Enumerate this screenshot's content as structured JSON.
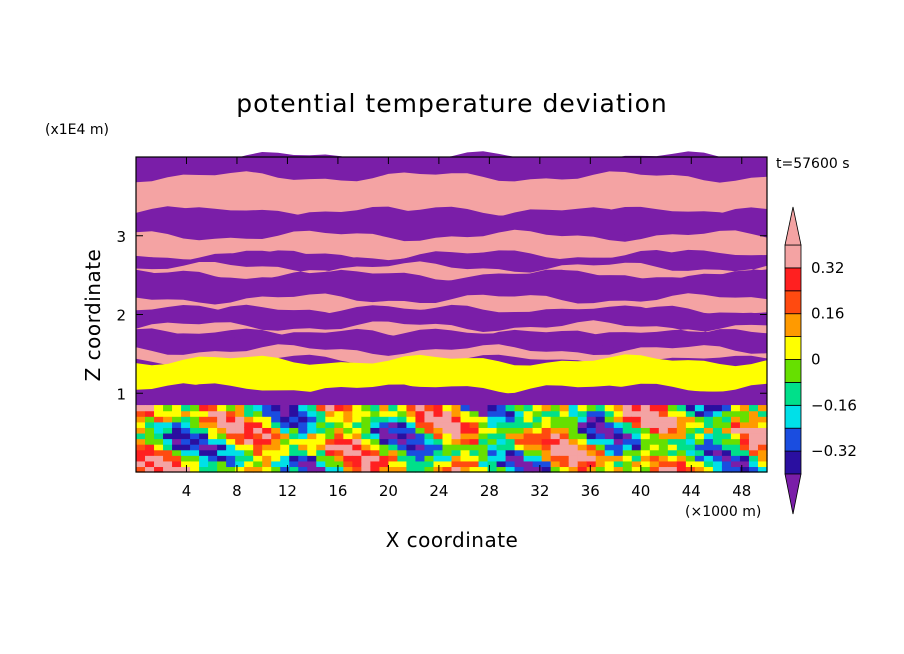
{
  "chart_data": {
    "type": "heatmap",
    "title": "potential temperature deviation",
    "xlabel": "X coordinate",
    "ylabel": "Z coordinate",
    "x_unit": "(×1000 m)",
    "y_unit": "(x1E4 m)",
    "time_label": "t=57600 s",
    "xlim": [
      0,
      50
    ],
    "ylim": [
      0,
      4
    ],
    "x_ticks": [
      4,
      8,
      12,
      16,
      20,
      24,
      28,
      32,
      36,
      40,
      44,
      48
    ],
    "y_ticks": [
      1,
      2,
      3
    ],
    "colorbar": {
      "levels": [
        -0.4,
        -0.32,
        -0.24,
        -0.16,
        -0.08,
        0,
        0.08,
        0.16,
        0.24,
        0.32,
        0.4
      ],
      "tick_labels": [
        {
          "value": 0.32,
          "label": "0.32"
        },
        {
          "value": 0.16,
          "label": "0.16"
        },
        {
          "value": 0,
          "label": "0"
        },
        {
          "value": -0.16,
          "label": "−0.16"
        },
        {
          "value": -0.32,
          "label": "−0.32"
        }
      ],
      "colors": [
        "#7a1ea8",
        "#2a0fa0",
        "#1a4de0",
        "#00e0e8",
        "#00e08a",
        "#66e000",
        "#ffff00",
        "#ff9a00",
        "#ff4a10",
        "#ff2020",
        "#f4a3a3"
      ],
      "extend": "both"
    },
    "layers": [
      {
        "z": [
          3.75,
          4.0
        ],
        "value": -0.4
      },
      {
        "z": [
          3.3,
          3.75
        ],
        "value": 0.4
      },
      {
        "z": [
          3.0,
          3.3
        ],
        "value": -0.4
      },
      {
        "z": [
          2.75,
          3.0
        ],
        "value": 0.4
      },
      {
        "z": [
          2.6,
          2.75
        ],
        "value": -0.4
      },
      {
        "z": [
          2.5,
          2.6
        ],
        "value": 0.4
      },
      {
        "z": [
          2.2,
          2.5
        ],
        "value": -0.4
      },
      {
        "z": [
          2.05,
          2.2
        ],
        "value": 0.4
      },
      {
        "z": [
          1.85,
          2.05
        ],
        "value": -0.4
      },
      {
        "z": [
          1.75,
          1.85
        ],
        "value": 0.4
      },
      {
        "z": [
          1.55,
          1.75
        ],
        "value": -0.4
      },
      {
        "z": [
          1.42,
          1.55
        ],
        "value": 0.4
      },
      {
        "z": [
          1.05,
          1.42
        ],
        "value": 0.0
      },
      {
        "z": [
          0.85,
          1.05
        ],
        "value": -0.4
      },
      {
        "z": [
          0.0,
          0.85
        ],
        "value": "mixed"
      }
    ]
  }
}
